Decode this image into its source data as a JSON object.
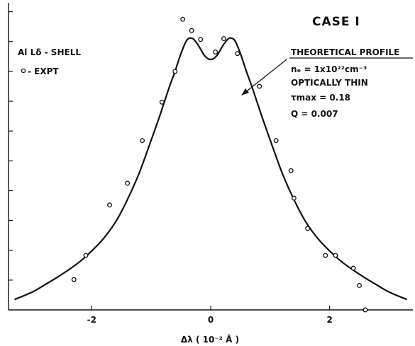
{
  "chart_data": {
    "type": "line",
    "title": "CASE I",
    "xlabel": "Δλ ( 10⁻² Å )",
    "ylabel": "",
    "xlim": [
      -3.4,
      3.4
    ],
    "ylim": [
      0,
      1.03
    ],
    "xticks": [
      -2,
      0,
      2
    ],
    "x_tick_labels": [
      "-2",
      "0",
      "2"
    ],
    "grid": false,
    "legend": "top-left",
    "legend_entries": {
      "line": "Al Lδ - SHELL",
      "marker_symbol": "o",
      "marker_text": "- EXPT"
    },
    "annotation": {
      "heading": "THEORETICAL PROFILE",
      "density": "nₑ = 1x10²²cm⁻³",
      "opacity": "OPTICALLY THIN",
      "tau": "τmax = 0.18",
      "q": "Q = 0.007",
      "points_to": "theoretical profile"
    },
    "series": [
      {
        "kind": "line",
        "x": [
          -3.3,
          -3.0,
          -2.8,
          -2.6,
          -2.4,
          -2.2,
          -2.0,
          -1.8,
          -1.6,
          -1.4,
          -1.2,
          -1.0,
          -0.85,
          -0.7,
          -0.6,
          -0.5,
          -0.4,
          -0.3,
          -0.2,
          -0.1,
          0.0,
          0.1,
          0.2,
          0.3,
          0.4,
          0.5,
          0.6,
          0.7,
          0.85,
          1.0,
          1.2,
          1.4,
          1.6,
          1.8,
          2.0,
          2.2,
          2.4,
          2.6,
          2.8,
          3.0,
          3.3
        ],
        "y": [
          0.035,
          0.06,
          0.083,
          0.107,
          0.133,
          0.162,
          0.198,
          0.24,
          0.295,
          0.37,
          0.46,
          0.57,
          0.655,
          0.745,
          0.8,
          0.86,
          0.905,
          0.91,
          0.885,
          0.852,
          0.84,
          0.852,
          0.885,
          0.91,
          0.905,
          0.86,
          0.8,
          0.745,
          0.655,
          0.57,
          0.46,
          0.37,
          0.295,
          0.24,
          0.198,
          0.162,
          0.133,
          0.107,
          0.083,
          0.06,
          0.035
        ]
      },
      {
        "kind": "scatter",
        "x": [
          -2.3,
          -2.1,
          -1.7,
          -1.4,
          -1.15,
          -0.82,
          -0.6,
          -0.47,
          -0.32,
          -0.17,
          0.08,
          0.22,
          0.45,
          0.82,
          1.1,
          1.35,
          1.4,
          1.63,
          1.93,
          2.1,
          2.4,
          2.5,
          2.6
        ],
        "y": [
          0.102,
          0.183,
          0.352,
          0.425,
          0.568,
          0.697,
          0.8,
          0.975,
          0.937,
          0.907,
          0.865,
          0.91,
          0.86,
          0.75,
          0.568,
          0.467,
          0.375,
          0.273,
          0.183,
          0.183,
          0.14,
          0.082,
          0.0
        ]
      }
    ]
  }
}
